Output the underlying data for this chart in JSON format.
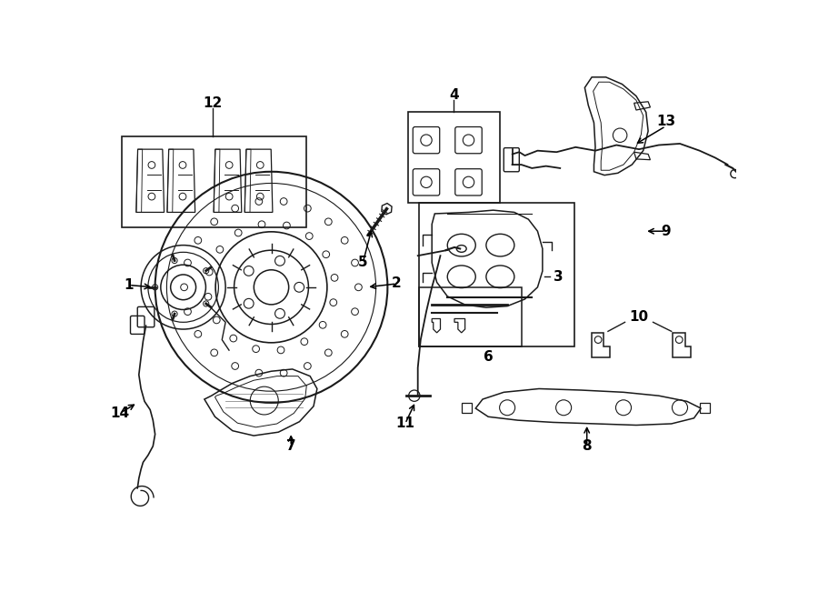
{
  "bg_color": "#ffffff",
  "line_color": "#1a1a1a",
  "lw": 1.1,
  "label_fontsize": 11,
  "figsize": [
    9.0,
    6.62
  ],
  "dpi": 100,
  "xlim": [
    0,
    900
  ],
  "ylim": [
    0,
    662
  ]
}
